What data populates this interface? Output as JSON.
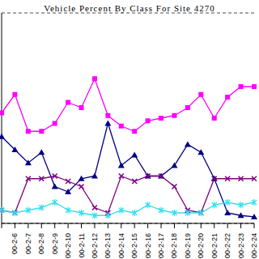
{
  "chart_data": {
    "type": "line",
    "title": "Vehicle Percent By Class For Site 4270",
    "categories": [
      null,
      "00-2-6",
      "00-2-7",
      "00-2-8",
      "00-2-9",
      "00-2-10",
      "00-2-11",
      "00-2-12",
      "00-2-13",
      "00-2-14",
      "00-2-15",
      "00-2-16",
      "00-2-17",
      "00-2-18",
      "00-2-19",
      "00-2-20",
      "00-2-21",
      "00-2-22",
      "00-2-23",
      "00-2-24"
    ],
    "series": [
      {
        "color": "#ff00ff",
        "marker": "square",
        "values": [
          42,
          49,
          35,
          35,
          38,
          46,
          44,
          55,
          41,
          37,
          35,
          39,
          40,
          41,
          44,
          49,
          40,
          48,
          52,
          52
        ]
      },
      {
        "color": "#000080",
        "marker": "triangle",
        "values": [
          33,
          28,
          23,
          27,
          14,
          12,
          17,
          18,
          38,
          22,
          26,
          18,
          18,
          22,
          30,
          27,
          17,
          4,
          3,
          2.5
        ]
      },
      {
        "color": "#800080",
        "marker": "x",
        "values": [
          5,
          4,
          17,
          17,
          18,
          16,
          14,
          6,
          4,
          18,
          16,
          18,
          18,
          14,
          5,
          4,
          17,
          17,
          17,
          17
        ]
      },
      {
        "color": "#33ddee",
        "marker": "star",
        "values": [
          5,
          4,
          5,
          6,
          8,
          5,
          4,
          3,
          3,
          5,
          4,
          7,
          5,
          4,
          4,
          4,
          7,
          8,
          7,
          8
        ]
      }
    ],
    "ylim": [
      0,
      80
    ],
    "yticks": [
      0,
      10,
      20,
      30,
      40,
      50,
      60,
      70,
      80
    ],
    "grid": true,
    "tick_labels": "x"
  }
}
